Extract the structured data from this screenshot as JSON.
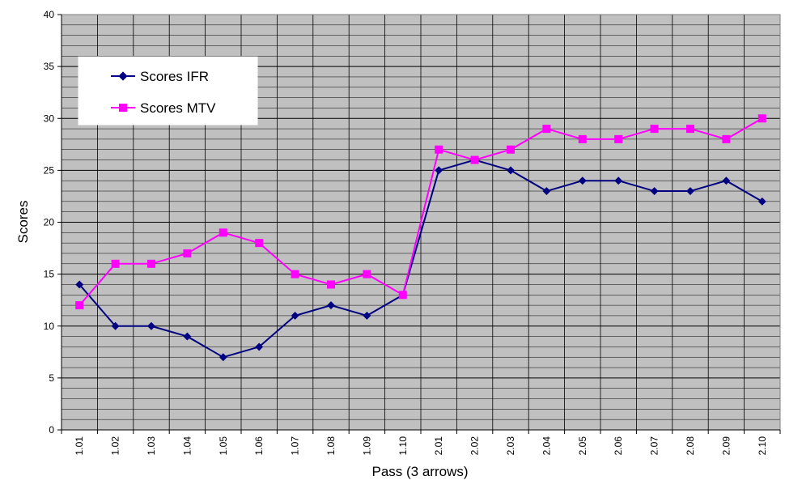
{
  "chart_data": {
    "type": "line",
    "title": "",
    "xlabel": "Pass (3 arrows)",
    "ylabel": "Scores",
    "categories": [
      "1.01",
      "1.02",
      "1.03",
      "1.04",
      "1.05",
      "1.06",
      "1.07",
      "1.08",
      "1.09",
      "1.10",
      "2.01",
      "2.02",
      "2.03",
      "2.04",
      "2.05",
      "2.06",
      "2.07",
      "2.08",
      "2.09",
      "2.10"
    ],
    "ylim": [
      0,
      40
    ],
    "yticks": [
      0,
      5,
      10,
      15,
      20,
      25,
      30,
      35,
      40
    ],
    "grid": true,
    "legend_position": "top-left",
    "plot_background": "#c0c0c0",
    "series": [
      {
        "name": "Scores IFR",
        "color": "#000080",
        "marker": "diamond",
        "values": [
          14,
          10,
          10,
          9,
          7,
          8,
          11,
          12,
          11,
          13,
          25,
          26,
          25,
          23,
          24,
          24,
          23,
          23,
          24,
          22
        ]
      },
      {
        "name": "Scores MTV",
        "color": "#ff00ff",
        "marker": "square",
        "values": [
          12,
          16,
          16,
          17,
          19,
          18,
          15,
          14,
          15,
          13,
          27,
          26,
          27,
          29,
          28,
          28,
          29,
          29,
          28,
          30
        ]
      }
    ]
  }
}
